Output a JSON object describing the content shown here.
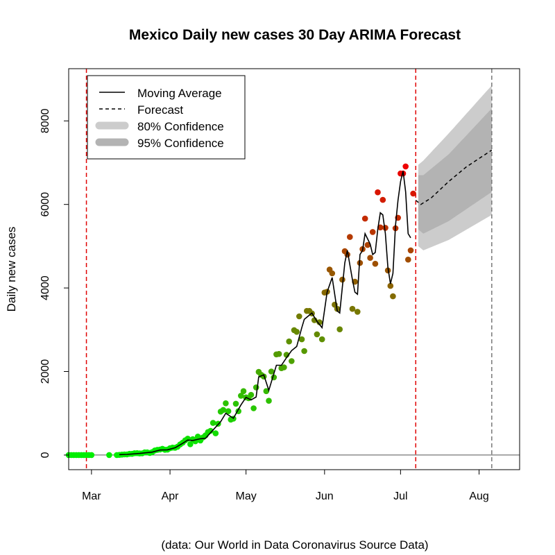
{
  "chart_data": {
    "type": "scatter",
    "title": "Mexico Daily new cases 30 Day ARIMA Forecast",
    "ylabel": "Daily new cases",
    "caption": "(data: Our World in Data Coronavirus Source Data)",
    "xlim": [
      "2020-02-21",
      "2020-08-17"
    ],
    "ylim": [
      -350,
      9250
    ],
    "y_ticks": [
      0,
      2000,
      4000,
      6000,
      8000
    ],
    "x_ticks": [
      {
        "date": "2020-03-01",
        "label": "Mar"
      },
      {
        "date": "2020-04-01",
        "label": "Apr"
      },
      {
        "date": "2020-05-01",
        "label": "May"
      },
      {
        "date": "2020-06-01",
        "label": "Jun"
      },
      {
        "date": "2020-07-01",
        "label": "Jul"
      },
      {
        "date": "2020-08-01",
        "label": "Aug"
      }
    ],
    "vlines": [
      {
        "date": "2020-02-28",
        "color": "#e00000"
      },
      {
        "date": "2020-07-07",
        "color": "#e00000"
      },
      {
        "date": "2020-08-06",
        "color": "#777777"
      }
    ],
    "legend": {
      "position": "top-left",
      "entries": [
        {
          "label": "Moving Average",
          "style": "solid-line"
        },
        {
          "label": "Forecast",
          "style": "dashed-line"
        },
        {
          "label": "80% Confidence",
          "style": "band",
          "color": "#cccccc"
        },
        {
          "label": "95% Confidence",
          "style": "band",
          "color": "#b3b3b3"
        }
      ]
    },
    "colors": {
      "low": "#00ee00",
      "high": "#ee0000",
      "band80": "#cccccc",
      "band95": "#b3b3b3",
      "zero_line": "#555555"
    },
    "daily_cases": [
      [
        "2020-02-21",
        0
      ],
      [
        "2020-02-22",
        0
      ],
      [
        "2020-02-23",
        0
      ],
      [
        "2020-02-24",
        0
      ],
      [
        "2020-02-25",
        0
      ],
      [
        "2020-02-26",
        0
      ],
      [
        "2020-02-27",
        0
      ],
      [
        "2020-02-28",
        0
      ],
      [
        "2020-02-29",
        0
      ],
      [
        "2020-03-01",
        0
      ],
      [
        "2020-03-08",
        0
      ],
      [
        "2020-03-11",
        0
      ],
      [
        "2020-03-12",
        4
      ],
      [
        "2020-03-13",
        10
      ],
      [
        "2020-03-14",
        15
      ],
      [
        "2020-03-15",
        15
      ],
      [
        "2020-03-16",
        29
      ],
      [
        "2020-03-17",
        29
      ],
      [
        "2020-03-18",
        44
      ],
      [
        "2020-03-19",
        46
      ],
      [
        "2020-03-20",
        38
      ],
      [
        "2020-03-21",
        40
      ],
      [
        "2020-03-22",
        65
      ],
      [
        "2020-03-23",
        65
      ],
      [
        "2020-03-24",
        51
      ],
      [
        "2020-03-25",
        70
      ],
      [
        "2020-03-26",
        110
      ],
      [
        "2020-03-27",
        125
      ],
      [
        "2020-03-28",
        131
      ],
      [
        "2020-03-29",
        150
      ],
      [
        "2020-03-30",
        126
      ],
      [
        "2020-03-31",
        130
      ],
      [
        "2020-04-01",
        163
      ],
      [
        "2020-04-02",
        178
      ],
      [
        "2020-04-03",
        175
      ],
      [
        "2020-04-04",
        200
      ],
      [
        "2020-04-05",
        254
      ],
      [
        "2020-04-06",
        296
      ],
      [
        "2020-04-07",
        352
      ],
      [
        "2020-04-08",
        393
      ],
      [
        "2020-04-09",
        260
      ],
      [
        "2020-04-10",
        380
      ],
      [
        "2020-04-11",
        330
      ],
      [
        "2020-04-12",
        442
      ],
      [
        "2020-04-13",
        350
      ],
      [
        "2020-04-14",
        420
      ],
      [
        "2020-04-15",
        470
      ],
      [
        "2020-04-16",
        550
      ],
      [
        "2020-04-17",
        580
      ],
      [
        "2020-04-18",
        770
      ],
      [
        "2020-04-19",
        520
      ],
      [
        "2020-04-20",
        750
      ],
      [
        "2020-04-21",
        1040
      ],
      [
        "2020-04-22",
        1080
      ],
      [
        "2020-04-23",
        1240
      ],
      [
        "2020-04-24",
        1050
      ],
      [
        "2020-04-25",
        850
      ],
      [
        "2020-04-26",
        870
      ],
      [
        "2020-04-27",
        1230
      ],
      [
        "2020-04-28",
        1050
      ],
      [
        "2020-04-29",
        1420
      ],
      [
        "2020-04-30",
        1530
      ],
      [
        "2020-05-01",
        1380
      ],
      [
        "2020-05-02",
        1360
      ],
      [
        "2020-05-03",
        1440
      ],
      [
        "2020-05-04",
        1120
      ],
      [
        "2020-05-05",
        1620
      ],
      [
        "2020-05-06",
        1990
      ],
      [
        "2020-05-07",
        1920
      ],
      [
        "2020-05-08",
        1880
      ],
      [
        "2020-05-09",
        1530
      ],
      [
        "2020-05-10",
        1300
      ],
      [
        "2020-05-11",
        2000
      ],
      [
        "2020-05-12",
        1860
      ],
      [
        "2020-05-13",
        2410
      ],
      [
        "2020-05-14",
        2420
      ],
      [
        "2020-05-15",
        2080
      ],
      [
        "2020-05-16",
        2100
      ],
      [
        "2020-05-17",
        2400
      ],
      [
        "2020-05-18",
        2720
      ],
      [
        "2020-05-19",
        2250
      ],
      [
        "2020-05-20",
        2990
      ],
      [
        "2020-05-21",
        2950
      ],
      [
        "2020-05-22",
        3320
      ],
      [
        "2020-05-23",
        2770
      ],
      [
        "2020-05-24",
        2490
      ],
      [
        "2020-05-25",
        3450
      ],
      [
        "2020-05-26",
        3450
      ],
      [
        "2020-05-27",
        3390
      ],
      [
        "2020-05-28",
        3230
      ],
      [
        "2020-05-29",
        2890
      ],
      [
        "2020-05-30",
        3180
      ],
      [
        "2020-05-31",
        2770
      ],
      [
        "2020-06-01",
        3890
      ],
      [
        "2020-06-02",
        3910
      ],
      [
        "2020-06-03",
        4440
      ],
      [
        "2020-06-04",
        4350
      ],
      [
        "2020-06-05",
        3600
      ],
      [
        "2020-06-06",
        3500
      ],
      [
        "2020-06-07",
        3010
      ],
      [
        "2020-06-08",
        4200
      ],
      [
        "2020-06-09",
        4880
      ],
      [
        "2020-06-10",
        4800
      ],
      [
        "2020-06-11",
        5220
      ],
      [
        "2020-06-12",
        3500
      ],
      [
        "2020-06-13",
        4150
      ],
      [
        "2020-06-14",
        3430
      ],
      [
        "2020-06-15",
        4600
      ],
      [
        "2020-06-16",
        4930
      ],
      [
        "2020-06-17",
        5660
      ],
      [
        "2020-06-18",
        5030
      ],
      [
        "2020-06-19",
        4720
      ],
      [
        "2020-06-20",
        5340
      ],
      [
        "2020-06-21",
        4580
      ],
      [
        "2020-06-22",
        6290
      ],
      [
        "2020-06-23",
        5450
      ],
      [
        "2020-06-24",
        6110
      ],
      [
        "2020-06-25",
        5440
      ],
      [
        "2020-06-26",
        4420
      ],
      [
        "2020-06-27",
        4050
      ],
      [
        "2020-06-28",
        3800
      ],
      [
        "2020-06-29",
        5430
      ],
      [
        "2020-06-30",
        5680
      ],
      [
        "2020-07-01",
        6740
      ],
      [
        "2020-07-02",
        6740
      ],
      [
        "2020-07-03",
        6910
      ],
      [
        "2020-07-04",
        4680
      ],
      [
        "2020-07-05",
        4900
      ],
      [
        "2020-07-06",
        6260
      ]
    ],
    "moving_average": [
      [
        "2020-03-12",
        10
      ],
      [
        "2020-03-15",
        15
      ],
      [
        "2020-03-20",
        38
      ],
      [
        "2020-03-25",
        70
      ],
      [
        "2020-03-28",
        120
      ],
      [
        "2020-03-31",
        125
      ],
      [
        "2020-04-03",
        175
      ],
      [
        "2020-04-06",
        280
      ],
      [
        "2020-04-08",
        360
      ],
      [
        "2020-04-10",
        350
      ],
      [
        "2020-04-13",
        390
      ],
      [
        "2020-04-15",
        400
      ],
      [
        "2020-04-18",
        600
      ],
      [
        "2020-04-21",
        800
      ],
      [
        "2020-04-23",
        1000
      ],
      [
        "2020-04-26",
        880
      ],
      [
        "2020-04-29",
        1200
      ],
      [
        "2020-05-01",
        1380
      ],
      [
        "2020-05-03",
        1320
      ],
      [
        "2020-05-05",
        1390
      ],
      [
        "2020-05-06",
        1870
      ],
      [
        "2020-05-08",
        1920
      ],
      [
        "2020-05-10",
        1550
      ],
      [
        "2020-05-13",
        2150
      ],
      [
        "2020-05-15",
        2150
      ],
      [
        "2020-05-17",
        2330
      ],
      [
        "2020-05-19",
        2500
      ],
      [
        "2020-05-21",
        2600
      ],
      [
        "2020-05-23",
        3050
      ],
      [
        "2020-05-24",
        3250
      ],
      [
        "2020-05-25",
        3300
      ],
      [
        "2020-05-27",
        3400
      ],
      [
        "2020-05-29",
        3200
      ],
      [
        "2020-05-31",
        3050
      ],
      [
        "2020-06-02",
        3900
      ],
      [
        "2020-06-04",
        4250
      ],
      [
        "2020-06-06",
        3450
      ],
      [
        "2020-06-07",
        3400
      ],
      [
        "2020-06-09",
        4600
      ],
      [
        "2020-06-10",
        4900
      ],
      [
        "2020-06-12",
        4200
      ],
      [
        "2020-06-13",
        3900
      ],
      [
        "2020-06-14",
        3850
      ],
      [
        "2020-06-15",
        4800
      ],
      [
        "2020-06-16",
        4900
      ],
      [
        "2020-06-17",
        5300
      ],
      [
        "2020-06-19",
        5050
      ],
      [
        "2020-06-20",
        4800
      ],
      [
        "2020-06-21",
        4850
      ],
      [
        "2020-06-22",
        5400
      ],
      [
        "2020-06-23",
        5800
      ],
      [
        "2020-06-24",
        5750
      ],
      [
        "2020-06-25",
        5300
      ],
      [
        "2020-06-26",
        4500
      ],
      [
        "2020-06-27",
        4100
      ],
      [
        "2020-06-28",
        4350
      ],
      [
        "2020-06-29",
        5500
      ],
      [
        "2020-06-30",
        6100
      ],
      [
        "2020-07-01",
        6550
      ],
      [
        "2020-07-02",
        6800
      ],
      [
        "2020-07-03",
        6300
      ],
      [
        "2020-07-04",
        5300
      ],
      [
        "2020-07-05",
        5200
      ]
    ],
    "forecast": {
      "mean": [
        [
          "2020-07-07",
          6100
        ],
        [
          "2020-07-09",
          6000
        ],
        [
          "2020-07-13",
          6150
        ],
        [
          "2020-07-20",
          6550
        ],
        [
          "2020-07-27",
          6900
        ],
        [
          "2020-08-06",
          7300
        ]
      ],
      "band95": {
        "upper": [
          [
            "2020-07-08",
            6950
          ],
          [
            "2020-07-10",
            7050
          ],
          [
            "2020-07-20",
            7700
          ],
          [
            "2020-08-06",
            8850
          ]
        ],
        "lower": [
          [
            "2020-07-08",
            5000
          ],
          [
            "2020-07-10",
            4900
          ],
          [
            "2020-07-20",
            5150
          ],
          [
            "2020-08-06",
            5750
          ]
        ]
      },
      "band80": {
        "upper": [
          [
            "2020-07-08",
            6700
          ],
          [
            "2020-07-10",
            6700
          ],
          [
            "2020-07-20",
            7200
          ],
          [
            "2020-08-06",
            8300
          ]
        ],
        "lower": [
          [
            "2020-07-08",
            5400
          ],
          [
            "2020-07-10",
            5300
          ],
          [
            "2020-07-20",
            5600
          ],
          [
            "2020-08-06",
            6300
          ]
        ]
      }
    }
  }
}
